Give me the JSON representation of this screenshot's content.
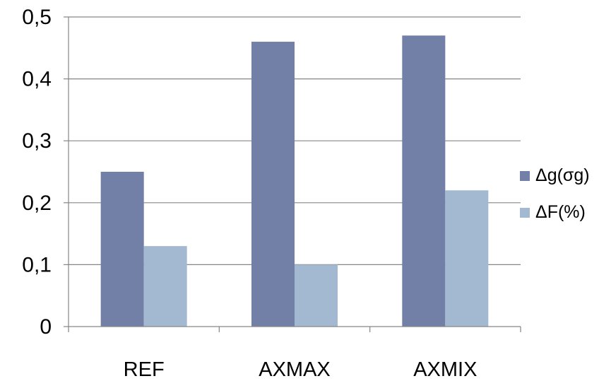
{
  "chart_data": {
    "type": "bar",
    "title": "",
    "xlabel": "",
    "ylabel": "",
    "categories": [
      "REF",
      "AXMAX",
      "AXMIX"
    ],
    "series": [
      {
        "name": "Δg(σg)",
        "color": "#727fa6",
        "values": [
          0.25,
          0.46,
          0.47
        ]
      },
      {
        "name": "ΔF(%)",
        "color": "#a3b9d1",
        "values": [
          0.13,
          0.1,
          0.22
        ]
      }
    ],
    "ylim": [
      0,
      0.5
    ],
    "yticks": [
      "0",
      "0,1",
      "0,2",
      "0,3",
      "0,4",
      "0,5"
    ],
    "grid": true,
    "legend_position": "right"
  }
}
